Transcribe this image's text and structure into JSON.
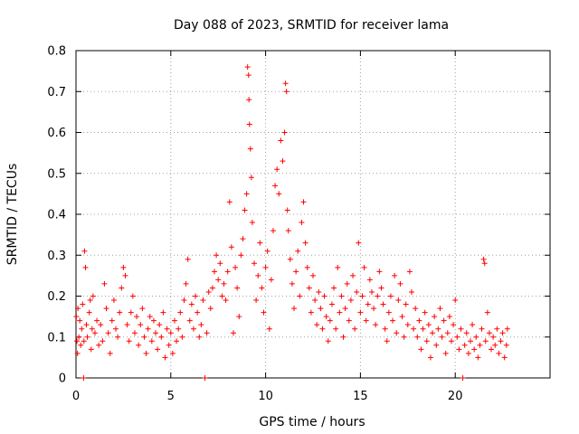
{
  "chart_data": {
    "type": "scatter",
    "title": "Day 088 of 2023, SRMTID for receiver lama",
    "xlabel": "GPS time / hours",
    "ylabel": "SRMTID / TECUs",
    "xlim": [
      0,
      25
    ],
    "ylim": [
      0,
      0.8
    ],
    "xticks": [
      0,
      5,
      10,
      15,
      20
    ],
    "xtick_labels": [
      "0",
      "5",
      "10",
      "15",
      "20"
    ],
    "yticks": [
      0,
      0.1,
      0.2,
      0.3,
      0.4,
      0.5,
      0.6,
      0.7,
      0.8
    ],
    "ytick_labels": [
      "0",
      "0.1",
      "0.2",
      "0.3",
      "0.4",
      "0.5",
      "0.6",
      "0.7",
      "0.8"
    ],
    "grid": true,
    "marker": "+",
    "color": "#ff0000",
    "series": [
      {
        "name": "SRMTID",
        "points": [
          [
            0.02,
            0.15
          ],
          [
            0.05,
            0.09
          ],
          [
            0.08,
            0.06
          ],
          [
            0.1,
            0.17
          ],
          [
            0.15,
            0.1
          ],
          [
            0.2,
            0.14
          ],
          [
            0.25,
            0.08
          ],
          [
            0.3,
            0.12
          ],
          [
            0.35,
            0.18
          ],
          [
            0.4,
            0.0
          ],
          [
            0.42,
            0.09
          ],
          [
            0.45,
            0.31
          ],
          [
            0.5,
            0.27
          ],
          [
            0.55,
            0.13
          ],
          [
            0.6,
            0.1
          ],
          [
            0.7,
            0.16
          ],
          [
            0.75,
            0.19
          ],
          [
            0.8,
            0.07
          ],
          [
            0.85,
            0.12
          ],
          [
            0.9,
            0.2
          ],
          [
            1.0,
            0.11
          ],
          [
            1.1,
            0.14
          ],
          [
            1.2,
            0.08
          ],
          [
            1.3,
            0.13
          ],
          [
            1.4,
            0.09
          ],
          [
            1.5,
            0.23
          ],
          [
            1.6,
            0.17
          ],
          [
            1.7,
            0.11
          ],
          [
            1.8,
            0.06
          ],
          [
            1.9,
            0.14
          ],
          [
            2.0,
            0.19
          ],
          [
            2.1,
            0.12
          ],
          [
            2.2,
            0.1
          ],
          [
            2.3,
            0.16
          ],
          [
            2.4,
            0.22
          ],
          [
            2.5,
            0.27
          ],
          [
            2.6,
            0.25
          ],
          [
            2.7,
            0.13
          ],
          [
            2.8,
            0.09
          ],
          [
            2.9,
            0.16
          ],
          [
            3.0,
            0.2
          ],
          [
            3.1,
            0.11
          ],
          [
            3.2,
            0.15
          ],
          [
            3.3,
            0.08
          ],
          [
            3.4,
            0.13
          ],
          [
            3.5,
            0.17
          ],
          [
            3.6,
            0.1
          ],
          [
            3.7,
            0.06
          ],
          [
            3.8,
            0.12
          ],
          [
            3.9,
            0.15
          ],
          [
            4.0,
            0.09
          ],
          [
            4.1,
            0.14
          ],
          [
            4.2,
            0.11
          ],
          [
            4.3,
            0.07
          ],
          [
            4.4,
            0.13
          ],
          [
            4.5,
            0.1
          ],
          [
            4.6,
            0.16
          ],
          [
            4.7,
            0.05
          ],
          [
            4.8,
            0.12
          ],
          [
            4.9,
            0.08
          ],
          [
            5.0,
            0.11
          ],
          [
            5.1,
            0.06
          ],
          [
            5.2,
            0.14
          ],
          [
            5.3,
            0.09
          ],
          [
            5.4,
            0.12
          ],
          [
            5.5,
            0.16
          ],
          [
            5.6,
            0.1
          ],
          [
            5.7,
            0.19
          ],
          [
            5.8,
            0.23
          ],
          [
            5.9,
            0.29
          ],
          [
            6.0,
            0.14
          ],
          [
            6.1,
            0.18
          ],
          [
            6.2,
            0.12
          ],
          [
            6.3,
            0.2
          ],
          [
            6.4,
            0.16
          ],
          [
            6.5,
            0.1
          ],
          [
            6.6,
            0.13
          ],
          [
            6.7,
            0.19
          ],
          [
            6.8,
            0.0
          ],
          [
            6.9,
            0.11
          ],
          [
            7.0,
            0.21
          ],
          [
            7.1,
            0.17
          ],
          [
            7.2,
            0.22
          ],
          [
            7.3,
            0.26
          ],
          [
            7.4,
            0.3
          ],
          [
            7.5,
            0.24
          ],
          [
            7.6,
            0.28
          ],
          [
            7.7,
            0.2
          ],
          [
            7.8,
            0.23
          ],
          [
            7.9,
            0.19
          ],
          [
            8.0,
            0.26
          ],
          [
            8.1,
            0.43
          ],
          [
            8.2,
            0.32
          ],
          [
            8.3,
            0.11
          ],
          [
            8.4,
            0.27
          ],
          [
            8.5,
            0.22
          ],
          [
            8.6,
            0.15
          ],
          [
            8.7,
            0.3
          ],
          [
            8.8,
            0.34
          ],
          [
            8.9,
            0.41
          ],
          [
            9.0,
            0.45
          ],
          [
            9.05,
            0.76
          ],
          [
            9.1,
            0.74
          ],
          [
            9.12,
            0.68
          ],
          [
            9.15,
            0.62
          ],
          [
            9.2,
            0.56
          ],
          [
            9.25,
            0.49
          ],
          [
            9.3,
            0.38
          ],
          [
            9.4,
            0.28
          ],
          [
            9.5,
            0.19
          ],
          [
            9.6,
            0.25
          ],
          [
            9.7,
            0.33
          ],
          [
            9.8,
            0.22
          ],
          [
            9.9,
            0.16
          ],
          [
            10.0,
            0.27
          ],
          [
            10.1,
            0.31
          ],
          [
            10.2,
            0.12
          ],
          [
            10.3,
            0.24
          ],
          [
            10.4,
            0.36
          ],
          [
            10.5,
            0.47
          ],
          [
            10.6,
            0.51
          ],
          [
            10.7,
            0.45
          ],
          [
            10.8,
            0.58
          ],
          [
            10.9,
            0.53
          ],
          [
            11.0,
            0.6
          ],
          [
            11.05,
            0.72
          ],
          [
            11.1,
            0.7
          ],
          [
            11.15,
            0.41
          ],
          [
            11.2,
            0.36
          ],
          [
            11.3,
            0.29
          ],
          [
            11.4,
            0.23
          ],
          [
            11.5,
            0.17
          ],
          [
            11.6,
            0.26
          ],
          [
            11.7,
            0.31
          ],
          [
            11.8,
            0.2
          ],
          [
            11.9,
            0.38
          ],
          [
            12.0,
            0.43
          ],
          [
            12.1,
            0.33
          ],
          [
            12.2,
            0.27
          ],
          [
            12.3,
            0.22
          ],
          [
            12.4,
            0.16
          ],
          [
            12.5,
            0.25
          ],
          [
            12.6,
            0.19
          ],
          [
            12.7,
            0.13
          ],
          [
            12.8,
            0.21
          ],
          [
            12.9,
            0.17
          ],
          [
            13.0,
            0.12
          ],
          [
            13.1,
            0.2
          ],
          [
            13.2,
            0.15
          ],
          [
            13.3,
            0.09
          ],
          [
            13.4,
            0.14
          ],
          [
            13.5,
            0.18
          ],
          [
            13.6,
            0.22
          ],
          [
            13.7,
            0.12
          ],
          [
            13.8,
            0.27
          ],
          [
            13.9,
            0.16
          ],
          [
            14.0,
            0.2
          ],
          [
            14.1,
            0.1
          ],
          [
            14.2,
            0.17
          ],
          [
            14.3,
            0.23
          ],
          [
            14.4,
            0.14
          ],
          [
            14.5,
            0.19
          ],
          [
            14.6,
            0.25
          ],
          [
            14.7,
            0.12
          ],
          [
            14.8,
            0.21
          ],
          [
            14.9,
            0.33
          ],
          [
            15.0,
            0.16
          ],
          [
            15.1,
            0.2
          ],
          [
            15.2,
            0.27
          ],
          [
            15.3,
            0.14
          ],
          [
            15.4,
            0.18
          ],
          [
            15.5,
            0.24
          ],
          [
            15.6,
            0.21
          ],
          [
            15.7,
            0.17
          ],
          [
            15.8,
            0.13
          ],
          [
            15.9,
            0.2
          ],
          [
            16.0,
            0.26
          ],
          [
            16.1,
            0.22
          ],
          [
            16.2,
            0.18
          ],
          [
            16.3,
            0.12
          ],
          [
            16.4,
            0.09
          ],
          [
            16.5,
            0.16
          ],
          [
            16.6,
            0.2
          ],
          [
            16.7,
            0.14
          ],
          [
            16.8,
            0.25
          ],
          [
            16.9,
            0.11
          ],
          [
            17.0,
            0.19
          ],
          [
            17.1,
            0.23
          ],
          [
            17.2,
            0.15
          ],
          [
            17.3,
            0.1
          ],
          [
            17.4,
            0.18
          ],
          [
            17.5,
            0.13
          ],
          [
            17.6,
            0.26
          ],
          [
            17.7,
            0.21
          ],
          [
            17.8,
            0.12
          ],
          [
            17.9,
            0.17
          ],
          [
            18.0,
            0.1
          ],
          [
            18.1,
            0.14
          ],
          [
            18.2,
            0.07
          ],
          [
            18.3,
            0.12
          ],
          [
            18.4,
            0.16
          ],
          [
            18.5,
            0.09
          ],
          [
            18.6,
            0.13
          ],
          [
            18.7,
            0.05
          ],
          [
            18.8,
            0.11
          ],
          [
            18.9,
            0.15
          ],
          [
            19.0,
            0.08
          ],
          [
            19.1,
            0.12
          ],
          [
            19.2,
            0.17
          ],
          [
            19.3,
            0.1
          ],
          [
            19.4,
            0.14
          ],
          [
            19.5,
            0.06
          ],
          [
            19.6,
            0.11
          ],
          [
            19.7,
            0.15
          ],
          [
            19.8,
            0.09
          ],
          [
            19.9,
            0.13
          ],
          [
            20.0,
            0.19
          ],
          [
            20.1,
            0.1
          ],
          [
            20.2,
            0.07
          ],
          [
            20.3,
            0.12
          ],
          [
            20.4,
            0.0
          ],
          [
            20.5,
            0.08
          ],
          [
            20.6,
            0.11
          ],
          [
            20.7,
            0.06
          ],
          [
            20.8,
            0.09
          ],
          [
            20.9,
            0.13
          ],
          [
            21.0,
            0.07
          ],
          [
            21.1,
            0.1
          ],
          [
            21.2,
            0.05
          ],
          [
            21.3,
            0.08
          ],
          [
            21.4,
            0.12
          ],
          [
            21.5,
            0.29
          ],
          [
            21.55,
            0.28
          ],
          [
            21.6,
            0.09
          ],
          [
            21.7,
            0.16
          ],
          [
            21.8,
            0.11
          ],
          [
            21.9,
            0.07
          ],
          [
            22.0,
            0.1
          ],
          [
            22.1,
            0.08
          ],
          [
            22.2,
            0.12
          ],
          [
            22.3,
            0.06
          ],
          [
            22.4,
            0.09
          ],
          [
            22.5,
            0.11
          ],
          [
            22.6,
            0.05
          ],
          [
            22.7,
            0.08
          ],
          [
            22.75,
            0.12
          ]
        ]
      }
    ]
  }
}
